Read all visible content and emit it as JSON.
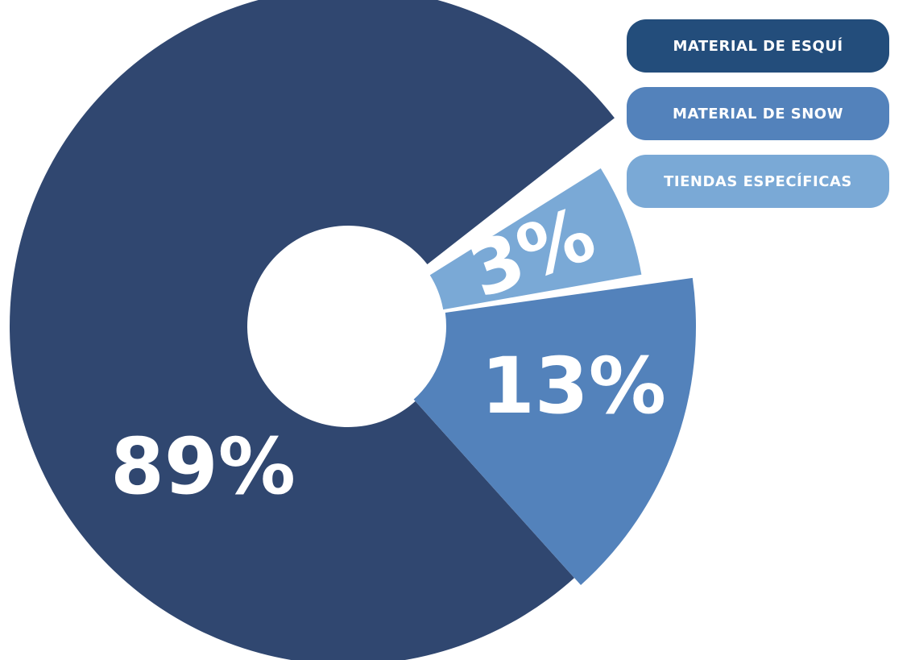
{
  "chart_data": {
    "type": "pie",
    "style": "donut-exploded",
    "slices": [
      {
        "name": "MATERIAL DE ESQUÍ",
        "value": 89,
        "label": "89%",
        "color": "#304770"
      },
      {
        "name": "MATERIAL DE SNOW",
        "value": 13,
        "label": "13%",
        "color": "#5382bb"
      },
      {
        "name": "TIENDAS ESPECÍFICAS",
        "value": 3,
        "label": "3%",
        "color": "#7aa9d6"
      }
    ],
    "legend_position": "top-right",
    "legend": [
      {
        "label": "MATERIAL DE ESQUÍ",
        "color": "#234d7b"
      },
      {
        "label": "MATERIAL DE SNOW",
        "color": "#5382bb"
      },
      {
        "label": "TIENDAS ESPECÍFICAS",
        "color": "#7aa9d6"
      }
    ]
  }
}
